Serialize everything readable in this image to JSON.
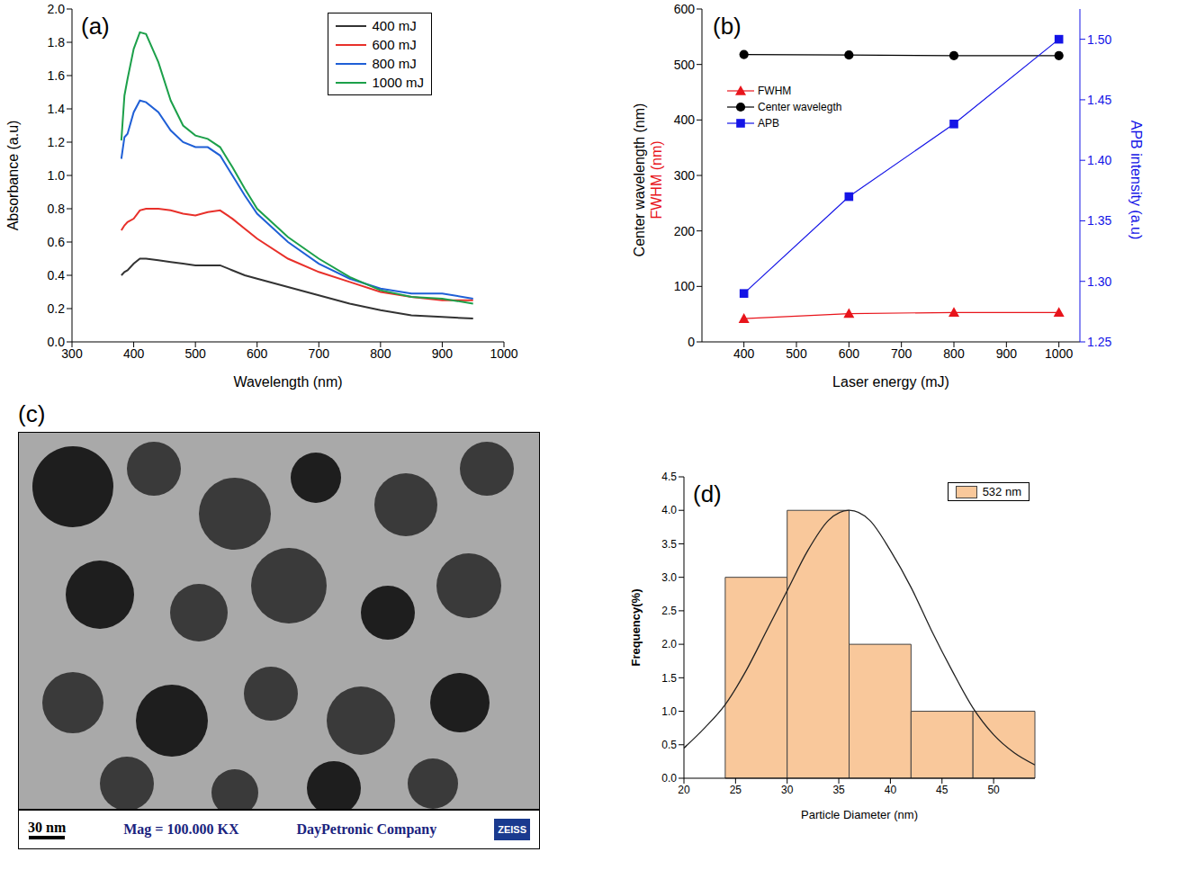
{
  "chart_data": [
    {
      "type": "line",
      "title": "(a)",
      "x": [
        380,
        385,
        390,
        400,
        410,
        420,
        440,
        460,
        480,
        500,
        520,
        540,
        560,
        580,
        600,
        650,
        700,
        750,
        800,
        850,
        900,
        950
      ],
      "series": [
        {
          "name": "400 mJ",
          "color": "#333333",
          "values": [
            0.4,
            0.42,
            0.43,
            0.47,
            0.5,
            0.5,
            0.49,
            0.48,
            0.47,
            0.46,
            0.46,
            0.46,
            0.43,
            0.4,
            0.38,
            0.33,
            0.28,
            0.23,
            0.19,
            0.16,
            0.15,
            0.14
          ]
        },
        {
          "name": "600 mJ",
          "color": "#e8302a",
          "values": [
            0.67,
            0.7,
            0.72,
            0.74,
            0.79,
            0.8,
            0.8,
            0.79,
            0.77,
            0.76,
            0.78,
            0.79,
            0.74,
            0.68,
            0.62,
            0.5,
            0.42,
            0.36,
            0.3,
            0.27,
            0.25,
            0.25
          ]
        },
        {
          "name": "800 mJ",
          "color": "#1f5fd6",
          "values": [
            1.1,
            1.23,
            1.25,
            1.38,
            1.45,
            1.44,
            1.38,
            1.27,
            1.2,
            1.17,
            1.17,
            1.12,
            1.0,
            0.88,
            0.77,
            0.6,
            0.47,
            0.38,
            0.32,
            0.29,
            0.29,
            0.26
          ]
        },
        {
          "name": "1000 mJ",
          "color": "#1ca04a",
          "values": [
            1.21,
            1.48,
            1.58,
            1.76,
            1.86,
            1.85,
            1.68,
            1.45,
            1.3,
            1.24,
            1.22,
            1.17,
            1.05,
            0.92,
            0.8,
            0.63,
            0.5,
            0.39,
            0.31,
            0.27,
            0.26,
            0.23
          ]
        }
      ],
      "xlabel": "Wavelength (nm)",
      "ylabel": "Absorbance (a.u)",
      "xlim": [
        300,
        1000
      ],
      "xticks": [
        300,
        400,
        500,
        600,
        700,
        800,
        900,
        1000
      ],
      "ylim": [
        0,
        2
      ],
      "yticks": [
        {
          "value": 0,
          "label": "0.0"
        },
        0.2,
        0.4,
        0.6,
        0.8,
        {
          "value": 1,
          "label": "1.0"
        },
        1.2,
        1.4,
        1.6,
        1.8,
        {
          "value": 2,
          "label": "2.0"
        }
      ],
      "legend": "upper right"
    },
    {
      "type": "line",
      "title": "(b)",
      "x": [
        400,
        600,
        800,
        1000
      ],
      "series": [
        {
          "name": "FWHM",
          "color": "#e8141b",
          "marker": "triangle",
          "values": [
            42,
            51,
            53,
            53
          ]
        },
        {
          "name": "Center wavelegth",
          "color": "#000000",
          "marker": "circle",
          "values": [
            518,
            517,
            516,
            516
          ]
        },
        {
          "name": "APB",
          "color": "#1414e6",
          "marker": "square",
          "axis": "y2",
          "values": [
            1.29,
            1.37,
            1.43,
            1.5
          ]
        }
      ],
      "xlabel": "Laser energy (mJ)",
      "ylabel": [
        "Center wavelength (nm)",
        "FWHM (nm)"
      ],
      "y2label": "APB intensity (a.u)",
      "xlim": [
        320,
        1040
      ],
      "xticks": [
        400,
        500,
        600,
        700,
        800,
        900,
        1000
      ],
      "ylim": [
        0,
        600
      ],
      "yticks": [
        0,
        100,
        200,
        300,
        400,
        500,
        600
      ],
      "y2lim": [
        1.25,
        1.525
      ],
      "y2ticks": [
        1.25,
        {
          "value": 1.3,
          "label": "1.30"
        },
        1.35,
        {
          "value": 1.4,
          "label": "1.40"
        },
        1.45,
        {
          "value": 1.5,
          "label": "1.50"
        }
      ],
      "legend": "upper left"
    },
    {
      "type": "image",
      "title": "(c)",
      "annotations": [
        "30 nm",
        "Mag = 100.000 KX",
        "DayPetronic Company",
        "ZEISS"
      ]
    },
    {
      "type": "histogram",
      "title": "(d)",
      "bins": [
        24,
        30,
        36,
        42,
        48,
        54
      ],
      "series": [
        {
          "name": "532 nm",
          "type": "bar",
          "color": "#f9c89b",
          "values": [
            3,
            4,
            2,
            1,
            1
          ]
        },
        {
          "type": "line",
          "color": "#222222",
          "x": [
            20,
            22,
            24,
            26,
            28,
            30,
            32,
            34,
            36,
            38,
            40,
            42,
            44,
            46,
            48,
            50,
            52,
            54
          ],
          "values": [
            0.45,
            0.75,
            1.1,
            1.6,
            2.2,
            2.8,
            3.4,
            3.85,
            4.0,
            3.85,
            3.4,
            2.85,
            2.2,
            1.6,
            1.05,
            0.65,
            0.38,
            0.2
          ]
        }
      ],
      "xlabel": "Particle Diameter (nm)",
      "ylabel": "Frequency(%)",
      "xlim": [
        20,
        54
      ],
      "xticks": [
        20,
        25,
        30,
        35,
        40,
        45,
        50
      ],
      "ylim": [
        0,
        4.5
      ],
      "yticks": [
        {
          "value": 0,
          "label": "0.0"
        },
        0.5,
        {
          "value": 1,
          "label": "1.0"
        },
        1.5,
        {
          "value": 2,
          "label": "2.0"
        },
        2.5,
        {
          "value": 3,
          "label": "3.0"
        },
        3.5,
        {
          "value": 4,
          "label": "4.0"
        },
        4.5
      ],
      "legend": "upper right"
    }
  ]
}
